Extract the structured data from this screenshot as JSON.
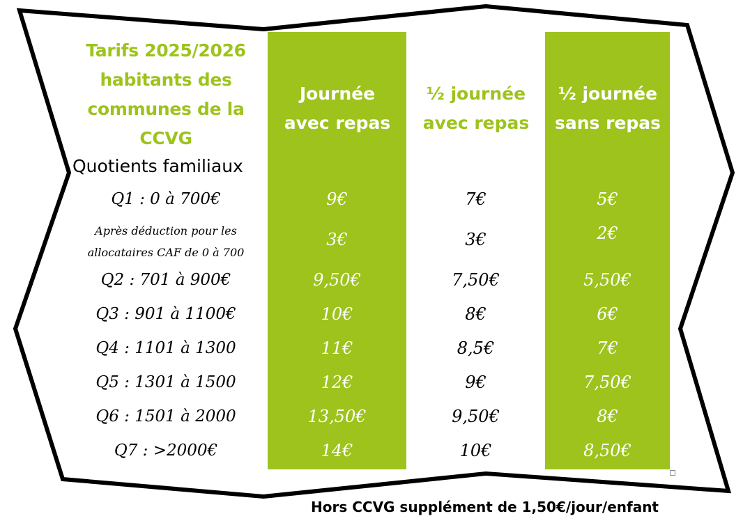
{
  "title_lines": [
    "Tarifs 2025/2026",
    "habitants des",
    "communes de la",
    "CCVG"
  ],
  "quotients_label": "Quotients familiaux",
  "columns": {
    "journee": [
      "Journée",
      "avec repas"
    ],
    "demi_avec": [
      "½ journée",
      "avec repas"
    ],
    "demi_sans": [
      "½ journée",
      "sans repas"
    ]
  },
  "rows": {
    "q1": {
      "label": "Q1 : 0 à 700€",
      "journee": "9€",
      "demi_avec": "7€",
      "demi_sans": "5€"
    },
    "caf": {
      "label_lines": [
        "Après déduction pour les",
        "allocataires CAF de 0 à 700"
      ],
      "journee": "3€",
      "demi_avec": "3€",
      "demi_sans": "2€"
    },
    "q2": {
      "label": "Q2 : 701 à 900€",
      "journee": "9,50€",
      "demi_avec": "7,50€",
      "demi_sans": "5,50€"
    },
    "q3": {
      "label": "Q3 : 901 à 1100€",
      "journee": "10€",
      "demi_avec": "8€",
      "demi_sans": "6€"
    },
    "q4": {
      "label": "Q4 : 1101 à 1300",
      "journee": "11€",
      "demi_avec": "8,5€",
      "demi_sans": "7€"
    },
    "q5": {
      "label": "Q5 : 1301 à 1500",
      "journee": "12€",
      "demi_avec": "9€",
      "demi_sans": "7,50€"
    },
    "q6": {
      "label": "Q6 : 1501 à 2000",
      "journee": "13,50€",
      "demi_avec": "9,50€",
      "demi_sans": "8€"
    },
    "q7": {
      "label": "Q7 : >2000€",
      "journee": "14€",
      "demi_avec": "10€",
      "demi_sans": "8,50€"
    }
  },
  "footer": "Hors CCVG supplément de 1,50€/jour/enfant",
  "colors": {
    "accent_green": "#9dc31c",
    "text": "#000000",
    "background": "#ffffff"
  }
}
